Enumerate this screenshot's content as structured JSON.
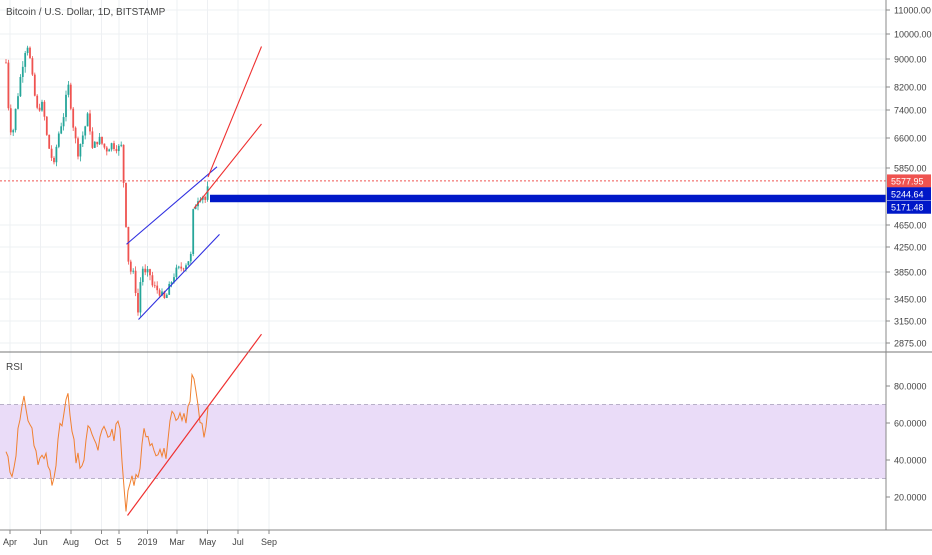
{
  "header": {
    "title": "Bitcoin / U.S. Dollar, 1D, BITSTAMP"
  },
  "rsi_panel": {
    "label": "RSI"
  },
  "colors": {
    "up": "#26a69a",
    "down": "#ef5350",
    "channel_blue": "#3030e0",
    "trend_red": "#ef3030",
    "rsi_line": "#f08030",
    "rsi_band": "#eadcf8",
    "price_tag": "#ef5350",
    "level_tag": "#0018c8",
    "grid": "#eef0f3"
  },
  "chart_data": [
    {
      "type": "candlestick",
      "title": "Bitcoin / U.S. Dollar, 1D, BITSTAMP",
      "ylim": [
        2875,
        11000
      ],
      "y_ticks": [
        "11000.00",
        "10000.00",
        "9000.00",
        "8200.00",
        "7400.00",
        "6600.00",
        "5850.00",
        "4650.00",
        "4250.00",
        "3850.00",
        "3450.00",
        "3150.00",
        "2875.00"
      ],
      "x_ticks": [
        "Apr",
        "Jun",
        "Aug",
        "Oct",
        "5",
        "2019",
        "Mar",
        "May",
        "Jul",
        "Sep"
      ],
      "last_price": "5577.95",
      "price_levels": [
        "5244.64",
        "5171.48"
      ],
      "close_path": [
        [
          "2018-03-24",
          8900
        ],
        [
          "2018-03-31",
          6900
        ],
        [
          "2018-04-07",
          6800
        ],
        [
          "2018-04-20",
          8300
        ],
        [
          "2018-05-05",
          9700
        ],
        [
          "2018-05-15",
          8500
        ],
        [
          "2018-05-25",
          7400
        ],
        [
          "2018-06-05",
          7600
        ],
        [
          "2018-06-15",
          6500
        ],
        [
          "2018-06-28",
          5900
        ],
        [
          "2018-07-05",
          6600
        ],
        [
          "2018-07-18",
          7300
        ],
        [
          "2018-07-26",
          8300
        ],
        [
          "2018-08-05",
          7000
        ],
        [
          "2018-08-14",
          6200
        ],
        [
          "2018-08-25",
          6700
        ],
        [
          "2018-09-05",
          7300
        ],
        [
          "2018-09-12",
          6300
        ],
        [
          "2018-09-25",
          6600
        ],
        [
          "2018-10-10",
          6300
        ],
        [
          "2018-10-20",
          6450
        ],
        [
          "2018-11-05",
          6350
        ],
        [
          "2018-11-12",
          6400
        ],
        [
          "2018-11-14",
          5600
        ],
        [
          "2018-11-20",
          4500
        ],
        [
          "2018-11-25",
          3900
        ],
        [
          "2018-12-05",
          3800
        ],
        [
          "2018-12-14",
          3200
        ],
        [
          "2018-12-20",
          4000
        ],
        [
          "2018-12-26",
          3800
        ],
        [
          "2019-01-05",
          3850
        ],
        [
          "2019-01-10",
          3650
        ],
        [
          "2019-01-25",
          3560
        ],
        [
          "2019-02-05",
          3430
        ],
        [
          "2019-02-15",
          3650
        ],
        [
          "2019-02-25",
          3850
        ],
        [
          "2019-03-10",
          3920
        ],
        [
          "2019-03-20",
          4000
        ],
        [
          "2019-03-30",
          4120
        ],
        [
          "2019-04-02",
          4900
        ],
        [
          "2019-04-10",
          5200
        ],
        [
          "2019-04-20",
          5300
        ],
        [
          "2019-04-28",
          5150
        ],
        [
          "2019-05-04",
          5600
        ]
      ],
      "drawings": [
        {
          "name": "blue-channel-upper",
          "from": [
            "2018-11-20",
            4300
          ],
          "to": [
            "2019-05-20",
            5880
          ]
        },
        {
          "name": "blue-channel-lower",
          "from": [
            "2018-12-14",
            3170
          ],
          "to": [
            "2019-05-25",
            4480
          ]
        },
        {
          "name": "red-channel-upper",
          "from": [
            "2019-05-02",
            5660
          ],
          "to": [
            "2019-08-17",
            9500
          ]
        },
        {
          "name": "red-channel-lower",
          "from": [
            "2019-04-04",
            5000
          ],
          "to": [
            "2019-08-17",
            7000
          ]
        }
      ]
    },
    {
      "type": "line",
      "title": "RSI",
      "ylim": [
        5,
        100
      ],
      "y_ticks": [
        "80.0000",
        "60.0000",
        "40.0000",
        "20.0000"
      ],
      "band": [
        30,
        70
      ],
      "rsi_path": [
        [
          "2018-03-24",
          45
        ],
        [
          "2018-04-05",
          32
        ],
        [
          "2018-04-20",
          60
        ],
        [
          "2018-05-01",
          72
        ],
        [
          "2018-05-15",
          55
        ],
        [
          "2018-05-28",
          38
        ],
        [
          "2018-06-10",
          42
        ],
        [
          "2018-06-25",
          30
        ],
        [
          "2018-07-10",
          55
        ],
        [
          "2018-07-25",
          75
        ],
        [
          "2018-08-10",
          40
        ],
        [
          "2018-08-25",
          38
        ],
        [
          "2018-09-08",
          60
        ],
        [
          "2018-09-20",
          45
        ],
        [
          "2018-10-05",
          55
        ],
        [
          "2018-10-20",
          52
        ],
        [
          "2018-11-08",
          60
        ],
        [
          "2018-11-15",
          22
        ],
        [
          "2018-11-20",
          12
        ],
        [
          "2018-11-25",
          28
        ],
        [
          "2018-12-05",
          30
        ],
        [
          "2018-12-15",
          26
        ],
        [
          "2018-12-25",
          60
        ],
        [
          "2019-01-05",
          52
        ],
        [
          "2019-01-15",
          48
        ],
        [
          "2019-01-25",
          45
        ],
        [
          "2019-02-05",
          42
        ],
        [
          "2019-02-18",
          62
        ],
        [
          "2019-03-01",
          60
        ],
        [
          "2019-03-12",
          62
        ],
        [
          "2019-03-25",
          66
        ],
        [
          "2019-04-02",
          90
        ],
        [
          "2019-04-12",
          72
        ],
        [
          "2019-04-22",
          55
        ],
        [
          "2019-04-30",
          58
        ],
        [
          "2019-05-04",
          70
        ]
      ],
      "drawings": [
        {
          "name": "rsi-trendline",
          "from": [
            "2018-11-22",
            10
          ],
          "to": [
            "2019-08-17",
            108
          ]
        }
      ]
    }
  ]
}
